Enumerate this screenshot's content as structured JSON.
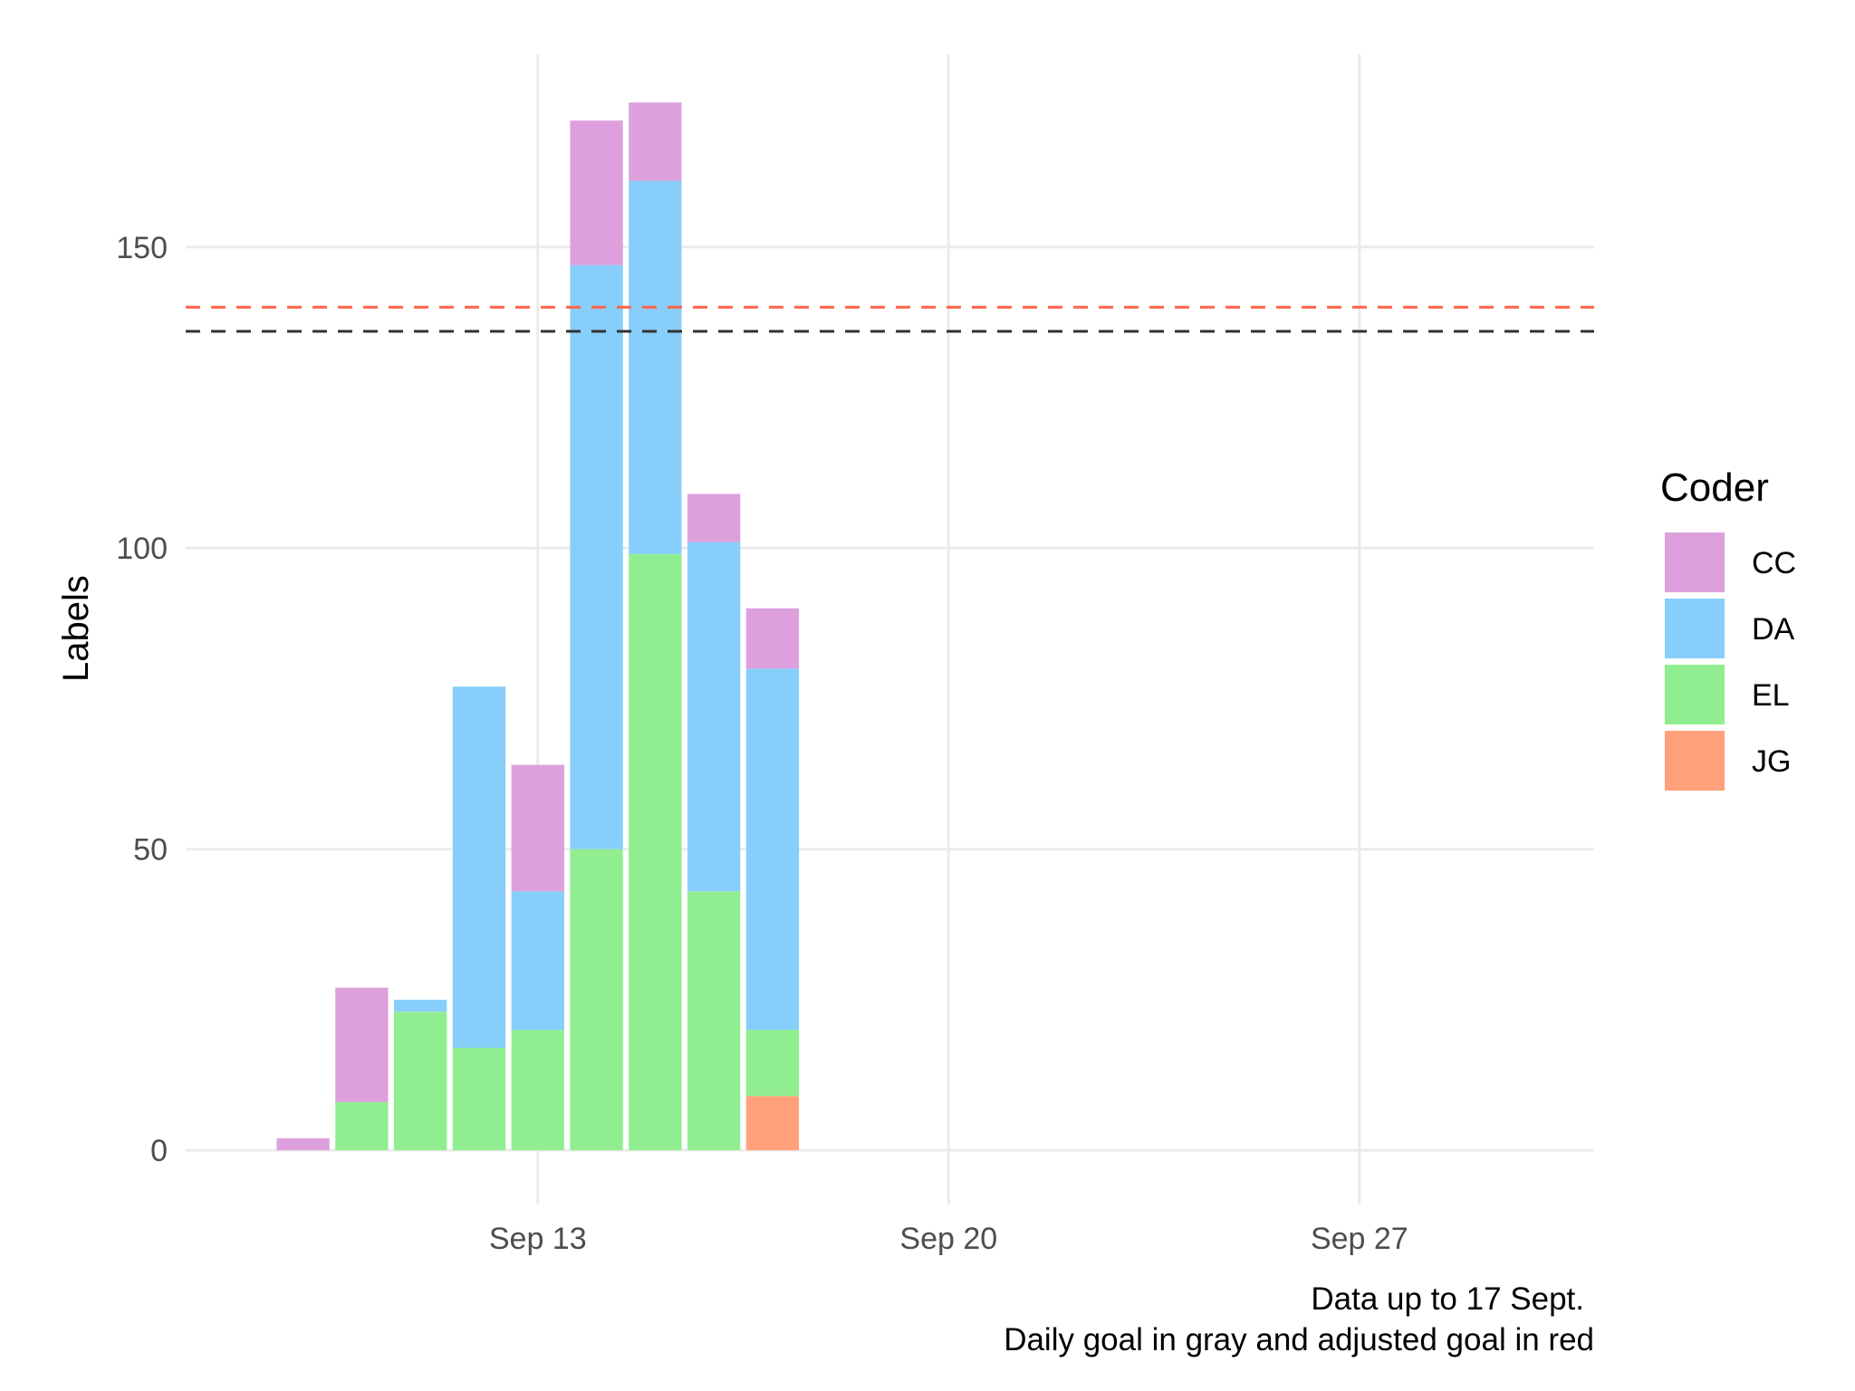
{
  "chart_data": {
    "type": "bar",
    "stacked": true,
    "xlabel": "",
    "ylabel": "Labels",
    "x_ticks": [
      "Sep 13",
      "Sep 20",
      "Sep 27"
    ],
    "y_ticks": [
      "0",
      "50",
      "100",
      "150"
    ],
    "ylim": [
      -9,
      182
    ],
    "xlim": [
      "2025-09-07",
      "2025-10-01"
    ],
    "grid": true,
    "legend": {
      "title": "Coder",
      "position": "right"
    },
    "categories": [
      "Sep 9",
      "Sep 10",
      "Sep 11",
      "Sep 12",
      "Sep 13",
      "Sep 14",
      "Sep 15",
      "Sep 16",
      "Sep 17"
    ],
    "series": [
      {
        "name": "JG",
        "color": "#FFA07A",
        "values": [
          0,
          0,
          0,
          0,
          0,
          0,
          0,
          0,
          9
        ]
      },
      {
        "name": "EL",
        "color": "#90EE90",
        "values": [
          0,
          8,
          23,
          17,
          20,
          50,
          99,
          43,
          11
        ]
      },
      {
        "name": "DA",
        "color": "#87CEFA",
        "values": [
          0,
          0,
          2,
          60,
          23,
          97,
          62,
          58,
          60
        ]
      },
      {
        "name": "CC",
        "color": "#DDA0DD",
        "values": [
          2,
          19,
          0,
          0,
          21,
          24,
          13,
          8,
          10
        ]
      }
    ],
    "hlines": [
      {
        "y": 140,
        "color": "#FF6347",
        "style": "dashed"
      },
      {
        "y": 136,
        "color": "#333333",
        "style": "dashed"
      }
    ],
    "caption": [
      "Data up to 17 Sept.",
      "Daily goal in gray and adjusted goal in red"
    ]
  }
}
